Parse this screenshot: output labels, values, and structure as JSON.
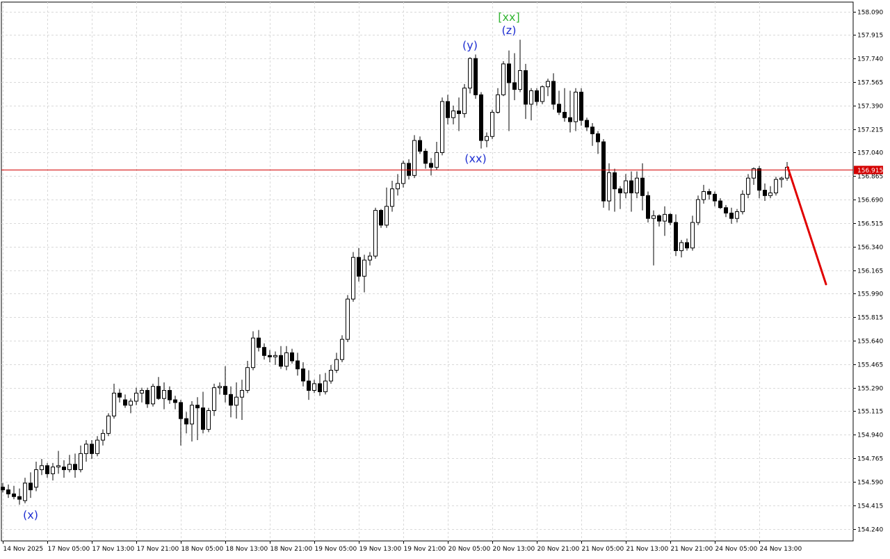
{
  "chart_data": {
    "type": "candlestick",
    "y_axis": {
      "ticks": [
        "158.090",
        "157.915",
        "157.740",
        "157.565",
        "157.390",
        "157.215",
        "157.040",
        "156.865",
        "156.690",
        "156.515",
        "156.340",
        "156.165",
        "155.990",
        "155.815",
        "155.640",
        "155.465",
        "155.290",
        "155.115",
        "154.940",
        "154.765",
        "154.590",
        "154.415",
        "154.240"
      ],
      "range": [
        154.15,
        158.16
      ]
    },
    "x_axis": {
      "tick_labels": [
        "14 Nov 2025",
        "17 Nov 05:00",
        "17 Nov 13:00",
        "17 Nov 21:00",
        "18 Nov 05:00",
        "18 Nov 13:00",
        "18 Nov 21:00",
        "19 Nov 05:00",
        "19 Nov 13:00",
        "19 Nov 21:00",
        "20 Nov 05:00",
        "20 Nov 13:00",
        "20 Nov 21:00",
        "21 Nov 05:00",
        "21 Nov 13:00",
        "21 Nov 21:00",
        "24 Nov 05:00",
        "24 Nov 13:00"
      ],
      "bars_per_label": 8
    },
    "grid": true,
    "current_price": {
      "label": "156.915",
      "value": 156.915,
      "color": "#d40000"
    },
    "candles": [
      [
        154.55,
        154.58,
        154.51,
        154.53
      ],
      [
        154.53,
        154.57,
        154.47,
        154.5
      ],
      [
        154.5,
        154.56,
        154.46,
        154.48
      ],
      [
        154.48,
        154.54,
        154.42,
        154.46
      ],
      [
        154.45,
        154.62,
        154.43,
        154.58
      ],
      [
        154.58,
        154.66,
        154.47,
        154.53
      ],
      [
        154.55,
        154.74,
        154.52,
        154.68
      ],
      [
        154.68,
        154.76,
        154.64,
        154.71
      ],
      [
        154.71,
        154.73,
        154.62,
        154.65
      ],
      [
        154.65,
        154.73,
        154.6,
        154.7
      ],
      [
        154.7,
        154.82,
        154.65,
        154.71
      ],
      [
        154.7,
        154.75,
        154.62,
        154.68
      ],
      [
        154.68,
        154.79,
        154.66,
        154.72
      ],
      [
        154.72,
        154.8,
        154.62,
        154.68
      ],
      [
        154.68,
        154.86,
        154.66,
        154.8
      ],
      [
        154.8,
        154.9,
        154.74,
        154.87
      ],
      [
        154.87,
        154.9,
        154.76,
        154.8
      ],
      [
        154.8,
        154.93,
        154.78,
        154.9
      ],
      [
        154.9,
        154.98,
        154.86,
        154.95
      ],
      [
        154.95,
        155.1,
        154.93,
        155.08
      ],
      [
        155.08,
        155.32,
        155.06,
        155.25
      ],
      [
        155.25,
        155.28,
        155.18,
        155.22
      ],
      [
        155.2,
        155.24,
        155.14,
        155.16
      ],
      [
        155.16,
        155.21,
        155.1,
        155.19
      ],
      [
        155.19,
        155.29,
        155.16,
        155.25
      ],
      [
        155.25,
        155.29,
        155.18,
        155.27
      ],
      [
        155.27,
        155.29,
        155.14,
        155.17
      ],
      [
        155.17,
        155.32,
        155.15,
        155.3
      ],
      [
        155.3,
        155.37,
        155.2,
        155.21
      ],
      [
        155.21,
        155.33,
        155.13,
        155.27
      ],
      [
        155.27,
        155.3,
        155.17,
        155.2
      ],
      [
        155.2,
        155.23,
        155.13,
        155.18
      ],
      [
        155.18,
        155.2,
        154.86,
        155.06
      ],
      [
        155.06,
        155.11,
        154.95,
        155.02
      ],
      [
        155.02,
        155.19,
        154.89,
        155.16
      ],
      [
        155.16,
        155.22,
        154.9,
        155.14
      ],
      [
        155.14,
        155.26,
        154.95,
        154.98
      ],
      [
        154.98,
        155.14,
        154.96,
        155.12
      ],
      [
        155.12,
        155.32,
        155.08,
        155.29
      ],
      [
        155.29,
        155.33,
        155.24,
        155.3
      ],
      [
        155.3,
        155.45,
        155.18,
        155.24
      ],
      [
        155.24,
        155.3,
        155.07,
        155.16
      ],
      [
        155.16,
        155.33,
        155.06,
        155.22
      ],
      [
        155.22,
        155.35,
        155.05,
        155.27
      ],
      [
        155.27,
        155.49,
        155.25,
        155.44
      ],
      [
        155.44,
        155.71,
        155.42,
        155.66
      ],
      [
        155.66,
        155.72,
        155.56,
        155.59
      ],
      [
        155.59,
        155.62,
        155.5,
        155.53
      ],
      [
        155.53,
        155.57,
        155.48,
        155.52
      ],
      [
        155.52,
        155.56,
        155.46,
        155.53
      ],
      [
        155.53,
        155.6,
        155.43,
        155.45
      ],
      [
        155.45,
        155.6,
        155.42,
        155.55
      ],
      [
        155.55,
        155.58,
        155.47,
        155.49
      ],
      [
        155.49,
        155.55,
        155.38,
        155.43
      ],
      [
        155.43,
        155.48,
        155.3,
        155.34
      ],
      [
        155.34,
        155.42,
        155.2,
        155.27
      ],
      [
        155.27,
        155.35,
        155.25,
        155.32
      ],
      [
        155.32,
        155.39,
        155.23,
        155.26
      ],
      [
        155.26,
        155.4,
        155.24,
        155.34
      ],
      [
        155.34,
        155.46,
        155.32,
        155.42
      ],
      [
        155.42,
        155.55,
        155.4,
        155.5
      ],
      [
        155.5,
        155.68,
        155.48,
        155.65
      ],
      [
        155.65,
        155.98,
        155.63,
        155.95
      ],
      [
        155.95,
        156.3,
        155.93,
        156.26
      ],
      [
        156.26,
        156.33,
        156.08,
        156.12
      ],
      [
        156.12,
        156.28,
        156.0,
        156.24
      ],
      [
        156.24,
        156.3,
        156.2,
        156.27
      ],
      [
        156.27,
        156.63,
        156.25,
        156.61
      ],
      [
        156.61,
        156.62,
        156.48,
        156.5
      ],
      [
        156.5,
        156.78,
        156.48,
        156.64
      ],
      [
        156.64,
        156.83,
        156.6,
        156.77
      ],
      [
        156.77,
        156.88,
        156.72,
        156.81
      ],
      [
        156.81,
        156.98,
        156.78,
        156.96
      ],
      [
        156.96,
        156.99,
        156.84,
        156.87
      ],
      [
        156.87,
        157.17,
        156.85,
        157.13
      ],
      [
        157.13,
        157.16,
        157.03,
        157.05
      ],
      [
        157.05,
        157.07,
        156.92,
        156.96
      ],
      [
        156.96,
        157.0,
        156.87,
        156.93
      ],
      [
        156.93,
        157.12,
        156.91,
        157.04
      ],
      [
        157.04,
        157.45,
        157.02,
        157.42
      ],
      [
        157.42,
        157.47,
        157.25,
        157.3
      ],
      [
        157.3,
        157.39,
        157.25,
        157.35
      ],
      [
        157.35,
        157.45,
        157.2,
        157.33
      ],
      [
        157.33,
        157.55,
        157.3,
        157.52
      ],
      [
        157.52,
        157.75,
        157.48,
        157.74
      ],
      [
        157.74,
        157.77,
        157.44,
        157.47
      ],
      [
        157.47,
        157.49,
        157.07,
        157.13
      ],
      [
        157.13,
        157.19,
        157.08,
        157.16
      ],
      [
        157.16,
        157.36,
        157.14,
        157.34
      ],
      [
        157.34,
        157.52,
        157.33,
        157.47
      ],
      [
        157.47,
        157.72,
        157.46,
        157.7
      ],
      [
        157.7,
        157.8,
        157.2,
        157.56
      ],
      [
        157.56,
        157.78,
        157.43,
        157.51
      ],
      [
        157.51,
        157.88,
        157.49,
        157.65
      ],
      [
        157.65,
        157.7,
        157.29,
        157.4
      ],
      [
        157.4,
        157.52,
        157.28,
        157.5
      ],
      [
        157.5,
        157.52,
        157.39,
        157.42
      ],
      [
        157.42,
        157.54,
        157.4,
        157.53
      ],
      [
        157.53,
        157.59,
        157.46,
        157.57
      ],
      [
        157.57,
        157.63,
        157.36,
        157.4
      ],
      [
        157.4,
        157.5,
        157.32,
        157.34
      ],
      [
        157.34,
        157.52,
        157.27,
        157.3
      ],
      [
        157.3,
        157.5,
        157.19,
        157.27
      ],
      [
        157.27,
        157.52,
        157.2,
        157.49
      ],
      [
        157.49,
        157.52,
        157.24,
        157.28
      ],
      [
        157.28,
        157.3,
        157.2,
        157.23
      ],
      [
        157.23,
        157.26,
        157.09,
        157.18
      ],
      [
        157.18,
        157.2,
        157.03,
        157.12
      ],
      [
        157.12,
        157.14,
        156.63,
        156.68
      ],
      [
        156.68,
        156.96,
        156.61,
        156.89
      ],
      [
        156.89,
        156.92,
        156.6,
        156.77
      ],
      [
        156.77,
        156.79,
        156.62,
        156.74
      ],
      [
        156.74,
        156.88,
        156.7,
        156.83
      ],
      [
        156.83,
        156.9,
        156.6,
        156.74
      ],
      [
        156.74,
        156.9,
        156.7,
        156.85
      ],
      [
        156.85,
        156.96,
        156.61,
        156.72
      ],
      [
        156.72,
        156.75,
        156.52,
        156.55
      ],
      [
        156.55,
        156.61,
        156.2,
        156.57
      ],
      [
        156.57,
        156.58,
        156.49,
        156.53
      ],
      [
        156.53,
        156.64,
        156.42,
        156.58
      ],
      [
        156.58,
        156.59,
        156.5,
        156.52
      ],
      [
        156.52,
        156.58,
        156.27,
        156.31
      ],
      [
        156.31,
        156.39,
        156.26,
        156.37
      ],
      [
        156.37,
        156.4,
        156.31,
        156.33
      ],
      [
        156.33,
        156.57,
        156.31,
        156.52
      ],
      [
        156.52,
        156.72,
        156.5,
        156.69
      ],
      [
        156.69,
        156.8,
        156.66,
        156.75
      ],
      [
        156.75,
        156.77,
        156.69,
        156.73
      ],
      [
        156.73,
        156.75,
        156.64,
        156.68
      ],
      [
        156.68,
        156.7,
        156.62,
        156.63
      ],
      [
        156.63,
        156.65,
        156.56,
        156.59
      ],
      [
        156.59,
        156.63,
        156.51,
        156.55
      ],
      [
        156.55,
        156.62,
        156.52,
        156.6
      ],
      [
        156.6,
        156.76,
        156.58,
        156.73
      ],
      [
        156.73,
        156.88,
        156.7,
        156.85
      ],
      [
        156.85,
        156.93,
        156.8,
        156.92
      ],
      [
        156.92,
        156.94,
        156.7,
        156.76
      ],
      [
        156.76,
        156.81,
        156.68,
        156.72
      ],
      [
        156.72,
        156.79,
        156.7,
        156.74
      ],
      [
        156.74,
        156.86,
        156.72,
        156.84
      ],
      [
        156.84,
        156.86,
        156.78,
        156.85
      ],
      [
        156.85,
        156.97,
        156.83,
        156.93
      ]
    ],
    "annotations": [
      {
        "text": "(x)",
        "color": "#1f2fd1"
      },
      {
        "text": "(y)",
        "color": "#1f2fd1"
      },
      {
        "text": "(xx)",
        "color": "#1f2fd1"
      },
      {
        "text": "[xx]",
        "color": "#34b534"
      },
      {
        "text": "(z)",
        "color": "#1f2fd1"
      }
    ],
    "forecast": {
      "color": "#e00000",
      "from": 156.93,
      "to": 156.06,
      "bars": 7
    },
    "colors": {
      "grid": "#d9d9d9",
      "candle_line": "#000000",
      "bull_fill": "#ffffff",
      "bear_fill": "#000000",
      "axis": "#000000"
    }
  }
}
